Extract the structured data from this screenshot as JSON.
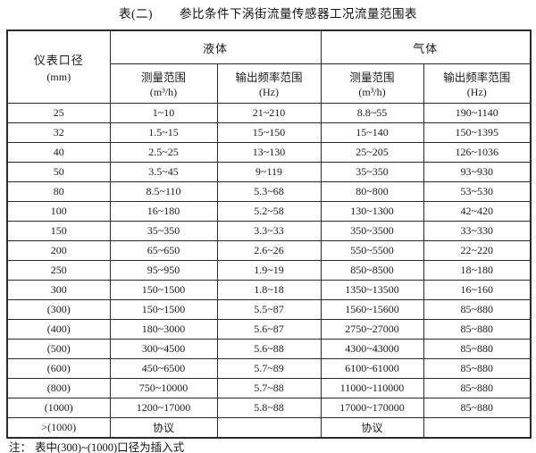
{
  "title": {
    "label": "表(二)",
    "caption": "参比条件下涡街流量传感器工况流量范围表"
  },
  "headers": {
    "diameter": "仪表口径",
    "diameter_unit": "(mm)",
    "liquid": "液体",
    "gas": "气体",
    "range_label": "测量范围",
    "range_unit": "(m³/h)",
    "freq_label": "输出频率范围",
    "freq_unit": "(Hz)"
  },
  "rows": [
    [
      "25",
      "1~10",
      "21~210",
      "8.8~55",
      "190~1140"
    ],
    [
      "32",
      "1.5~15",
      "15~150",
      "15~140",
      "150~1395"
    ],
    [
      "40",
      "2.5~25",
      "13~130",
      "25~205",
      "126~1036"
    ],
    [
      "50",
      "3.5~45",
      "9~119",
      "35~350",
      "93~930"
    ],
    [
      "80",
      "8.5~110",
      "5.3~68",
      "80~800",
      "53~530"
    ],
    [
      "100",
      "16~180",
      "5.2~58",
      "130~1300",
      "42~420"
    ],
    [
      "150",
      "35~350",
      "3.3~33",
      "350~3500",
      "33~330"
    ],
    [
      "200",
      "65~650",
      "2.6~26",
      "550~5500",
      "22~220"
    ],
    [
      "250",
      "95~950",
      "1.9~19",
      "850~8500",
      "18~180"
    ],
    [
      "300",
      "150~1500",
      "1.8~18",
      "1350~13500",
      "16~160"
    ],
    [
      "(300)",
      "150~1500",
      "5.5~87",
      "1560~15600",
      "85~880"
    ],
    [
      "(400)",
      "180~3000",
      "5.6~87",
      "2750~27000",
      "85~880"
    ],
    [
      "(500)",
      "300~4500",
      "5.6~88",
      "4300~43000",
      "85~880"
    ],
    [
      "(600)",
      "450~6500",
      "5.7~89",
      "6100~61000",
      "85~880"
    ],
    [
      "(800)",
      "750~10000",
      "5.7~88",
      "11000~110000",
      "85~880"
    ],
    [
      "(1000)",
      "1200~17000",
      "5.8~88",
      "17000~170000",
      "85~880"
    ],
    [
      ">(1000)",
      "协议",
      "",
      "协议",
      ""
    ]
  ],
  "note": {
    "label": "注：",
    "text": "表中(300)~(1000)口径为插入式"
  },
  "colors": {
    "border": "#2b2b2b",
    "text": "#1a1a1a",
    "background": "#ffffff"
  }
}
